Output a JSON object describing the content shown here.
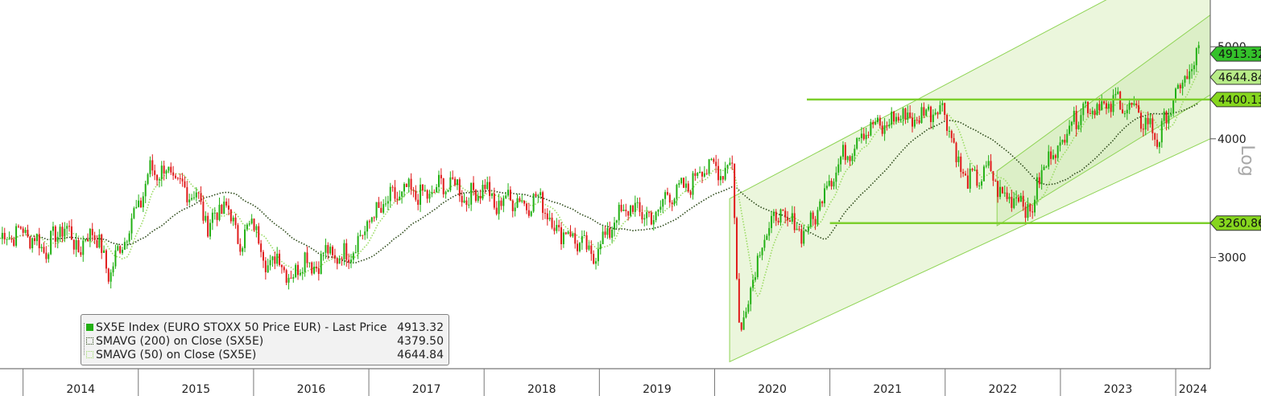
{
  "colors": {
    "up": "#22b014",
    "down": "#e01b1b",
    "channel_line": "#8fd455",
    "channel_fill": "#e7f4d6",
    "level_line": "#7ccf2c",
    "sma200": "#2d4a1a",
    "sma50": "#9bdb64",
    "last_price_tag": "#34c22a",
    "sma50_tag": "#b8ec88",
    "level_tag": "#86d61e"
  },
  "chart_data": {
    "type": "line",
    "title": "",
    "ylabel": "Log",
    "y_scale": "log",
    "ylim": [
      2300,
      5600
    ],
    "x_tick_labels": [
      "2014",
      "2015",
      "2016",
      "2017",
      "2018",
      "2019",
      "2020",
      "2021",
      "2022",
      "2023",
      "2024"
    ],
    "y_tick_labels": [
      "5000",
      "4000",
      "3000"
    ],
    "y_ticks": [
      5000,
      4000,
      3000
    ],
    "x_year_range": [
      2013.8,
      2024.3
    ],
    "series": [
      {
        "name": "SX5E Index (EURO STOXX 50 Price EUR) - Last Price",
        "style": "candles",
        "x": [
          2013.8,
          2014.0,
          2014.2,
          2014.35,
          2014.5,
          2014.6,
          2014.75,
          2014.9,
          2015.0,
          2015.1,
          2015.25,
          2015.35,
          2015.5,
          2015.6,
          2015.75,
          2015.9,
          2016.0,
          2016.1,
          2016.2,
          2016.35,
          2016.45,
          2016.5,
          2016.6,
          2016.75,
          2016.9,
          2017.0,
          2017.2,
          2017.35,
          2017.5,
          2017.6,
          2017.75,
          2017.85,
          2018.0,
          2018.1,
          2018.2,
          2018.35,
          2018.5,
          2018.6,
          2018.75,
          2018.95,
          2019.0,
          2019.2,
          2019.35,
          2019.45,
          2019.6,
          2019.75,
          2019.9,
          2020.05,
          2020.15,
          2020.22,
          2020.35,
          2020.5,
          2020.6,
          2020.75,
          2020.85,
          2020.95,
          2021.1,
          2021.3,
          2021.5,
          2021.6,
          2021.75,
          2021.85,
          2022.0,
          2022.1,
          2022.2,
          2022.4,
          2022.5,
          2022.6,
          2022.75,
          2022.85,
          2023.0,
          2023.1,
          2023.2,
          2023.3,
          2023.4,
          2023.5,
          2023.6,
          2023.75,
          2023.85,
          2024.0,
          2024.1,
          2024.2
        ],
        "values": [
          3140,
          3200,
          3060,
          3240,
          3050,
          3230,
          2880,
          3200,
          3390,
          3700,
          3700,
          3560,
          3500,
          3250,
          3410,
          3100,
          3300,
          2950,
          3000,
          2850,
          3050,
          2900,
          3030,
          3000,
          3100,
          3280,
          3460,
          3520,
          3470,
          3560,
          3590,
          3450,
          3580,
          3380,
          3480,
          3420,
          3460,
          3230,
          3170,
          3000,
          3100,
          3360,
          3370,
          3280,
          3500,
          3540,
          3750,
          3700,
          3790,
          2460,
          2950,
          3300,
          3300,
          3200,
          3250,
          3550,
          3800,
          4100,
          4130,
          4250,
          4180,
          4300,
          4300,
          3800,
          3600,
          3700,
          3450,
          3500,
          3350,
          3750,
          3950,
          4200,
          4300,
          4350,
          4300,
          4400,
          4300,
          4150,
          4000,
          4450,
          4650,
          4913
        ]
      },
      {
        "name": "SMAVG (200) on Close (SX5E)",
        "style": "dotted"
      },
      {
        "name": "SMAVG (50) on Close (SX5E)",
        "style": "dotted"
      }
    ],
    "horizontal_levels": [
      4400.13,
      3260.86
    ],
    "value_tags": [
      {
        "label": "4913.32",
        "value": 4913.32,
        "color_key": "last_price_tag"
      },
      {
        "label": "4644.84",
        "value": 4644.84,
        "color_key": "sma50_tag"
      },
      {
        "label": "4400.13",
        "value": 4400.13,
        "color_key": "level_tag"
      },
      {
        "label": "3260.86",
        "value": 3260.86,
        "color_key": "level_tag"
      }
    ],
    "legend": {
      "placement": "bottom-left",
      "rows": [
        {
          "label": "SX5E Index (EURO STOXX 50 Price EUR) - Last Price",
          "value": "4913.32"
        },
        {
          "label": "SMAVG (200)  on Close (SX5E)",
          "value": "4379.50"
        },
        {
          "label": "SMAVG (50)  on Close (SX5E)",
          "value": "4644.84"
        }
      ]
    }
  }
}
